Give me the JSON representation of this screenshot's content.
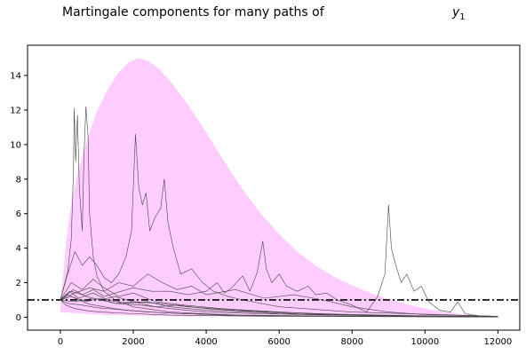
{
  "chart_data": {
    "type": "area",
    "title": "Martingale components for many paths of",
    "title_var": {
      "base": "y",
      "sub": "1"
    },
    "xlim": [
      -900,
      12600
    ],
    "ylim": [
      -0.75,
      15.75
    ],
    "x_ticks": [
      0,
      2000,
      4000,
      6000,
      8000,
      10000,
      12000
    ],
    "x_tick_labels": [
      "0",
      "2000",
      "4000",
      "6000",
      "8000",
      "10000",
      "12000"
    ],
    "y_ticks": [
      0,
      2,
      4,
      6,
      8,
      10,
      12,
      14
    ],
    "y_tick_labels": [
      "0",
      "2",
      "4",
      "6",
      "8",
      "10",
      "12",
      "14"
    ],
    "band": {
      "color": "#ffccff",
      "upper": [
        [
          0,
          0.6
        ],
        [
          150,
          4.2
        ],
        [
          300,
          6.6
        ],
        [
          500,
          8.6
        ],
        [
          750,
          10.4
        ],
        [
          1000,
          11.9
        ],
        [
          1300,
          13.2
        ],
        [
          1600,
          14.2
        ],
        [
          1900,
          14.8
        ],
        [
          2150,
          15.0
        ],
        [
          2400,
          14.85
        ],
        [
          2700,
          14.4
        ],
        [
          3000,
          13.7
        ],
        [
          3500,
          12.3
        ],
        [
          4000,
          10.7
        ],
        [
          4500,
          9.0
        ],
        [
          5000,
          7.4
        ],
        [
          5500,
          6.0
        ],
        [
          6000,
          4.8
        ],
        [
          6500,
          3.8
        ],
        [
          7000,
          3.0
        ],
        [
          7500,
          2.35
        ],
        [
          8000,
          1.85
        ],
        [
          8500,
          1.4
        ],
        [
          9000,
          1.05
        ],
        [
          9500,
          0.75
        ],
        [
          10000,
          0.5
        ],
        [
          10500,
          0.32
        ],
        [
          11000,
          0.18
        ],
        [
          11500,
          0.08
        ],
        [
          12000,
          0.03
        ]
      ],
      "lower": [
        [
          0,
          0.3
        ],
        [
          1000,
          0.15
        ],
        [
          3000,
          0.05
        ],
        [
          6000,
          0.02
        ],
        [
          12000,
          0.0
        ]
      ]
    },
    "reference_line": {
      "y": 1.0,
      "style": "dash-dot",
      "color": "#000000"
    },
    "paths_color": "#444444",
    "paths": [
      [
        [
          0,
          1.0
        ],
        [
          100,
          1.8
        ],
        [
          200,
          2.6
        ],
        [
          300,
          4.5
        ],
        [
          360,
          8.5
        ],
        [
          380,
          12.1
        ],
        [
          420,
          9.0
        ],
        [
          470,
          11.7
        ],
        [
          520,
          7.5
        ],
        [
          600,
          5.0
        ],
        [
          650,
          9.5
        ],
        [
          700,
          12.2
        ],
        [
          760,
          10.5
        ],
        [
          800,
          6.0
        ],
        [
          900,
          3.5
        ],
        [
          1000,
          2.4
        ],
        [
          1200,
          1.5
        ],
        [
          1500,
          1.0
        ],
        [
          2000,
          0.6
        ],
        [
          3000,
          0.3
        ],
        [
          5000,
          0.1
        ],
        [
          8000,
          0.05
        ],
        [
          12000,
          0.02
        ]
      ],
      [
        [
          0,
          1.0
        ],
        [
          200,
          2.5
        ],
        [
          400,
          3.8
        ],
        [
          600,
          3.0
        ],
        [
          800,
          3.5
        ],
        [
          1000,
          3.0
        ],
        [
          1200,
          2.3
        ],
        [
          1400,
          2.0
        ],
        [
          1600,
          2.5
        ],
        [
          1800,
          3.5
        ],
        [
          1950,
          5.0
        ],
        [
          2060,
          10.6
        ],
        [
          2150,
          7.5
        ],
        [
          2250,
          6.5
        ],
        [
          2350,
          7.2
        ],
        [
          2450,
          5.0
        ],
        [
          2600,
          5.8
        ],
        [
          2750,
          6.3
        ],
        [
          2850,
          8.0
        ],
        [
          2950,
          5.5
        ],
        [
          3100,
          4.0
        ],
        [
          3300,
          2.5
        ],
        [
          3600,
          2.8
        ],
        [
          3900,
          2.0
        ],
        [
          4200,
          1.5
        ],
        [
          4600,
          1.2
        ],
        [
          5000,
          1.0
        ],
        [
          6000,
          0.6
        ],
        [
          8000,
          0.3
        ],
        [
          12000,
          0.05
        ]
      ],
      [
        [
          0,
          1.0
        ],
        [
          300,
          1.5
        ],
        [
          600,
          1.3
        ],
        [
          900,
          1.6
        ],
        [
          1200,
          1.2
        ],
        [
          1500,
          1.4
        ],
        [
          2000,
          1.7
        ],
        [
          2500,
          1.5
        ],
        [
          3000,
          1.5
        ],
        [
          3500,
          1.3
        ],
        [
          4000,
          1.5
        ],
        [
          4300,
          2.0
        ],
        [
          4500,
          1.4
        ],
        [
          4700,
          1.7
        ],
        [
          5000,
          2.4
        ],
        [
          5200,
          1.5
        ],
        [
          5400,
          2.6
        ],
        [
          5550,
          4.4
        ],
        [
          5650,
          2.8
        ],
        [
          5800,
          2.0
        ],
        [
          6000,
          2.5
        ],
        [
          6200,
          1.8
        ],
        [
          6500,
          1.5
        ],
        [
          6800,
          1.8
        ],
        [
          7000,
          1.3
        ],
        [
          7300,
          1.4
        ],
        [
          7600,
          1.0
        ],
        [
          8000,
          0.7
        ],
        [
          8400,
          0.3
        ],
        [
          8700,
          1.2
        ],
        [
          8900,
          2.5
        ],
        [
          9000,
          6.5
        ],
        [
          9080,
          4.0
        ],
        [
          9200,
          3.0
        ],
        [
          9350,
          2.0
        ],
        [
          9500,
          2.5
        ],
        [
          9700,
          1.5
        ],
        [
          9900,
          1.8
        ],
        [
          10100,
          0.9
        ],
        [
          10400,
          0.4
        ],
        [
          10700,
          0.3
        ],
        [
          10900,
          0.9
        ],
        [
          11100,
          0.2
        ],
        [
          11500,
          0.08
        ],
        [
          12000,
          0.05
        ]
      ],
      [
        [
          0,
          1.0
        ],
        [
          400,
          1.4
        ],
        [
          800,
          1.7
        ],
        [
          1200,
          1.5
        ],
        [
          1600,
          2.0
        ],
        [
          2000,
          1.8
        ],
        [
          2400,
          2.5
        ],
        [
          2800,
          2.0
        ],
        [
          3200,
          1.6
        ],
        [
          3600,
          1.8
        ],
        [
          4000,
          1.3
        ],
        [
          4800,
          1.6
        ],
        [
          5600,
          1.1
        ],
        [
          6400,
          1.3
        ],
        [
          7200,
          1.0
        ],
        [
          8000,
          0.6
        ],
        [
          9000,
          0.3
        ],
        [
          10000,
          0.15
        ],
        [
          12000,
          0.05
        ]
      ],
      [
        [
          0,
          1.0
        ],
        [
          300,
          1.2
        ],
        [
          700,
          0.9
        ],
        [
          1100,
          1.1
        ],
        [
          1500,
          0.8
        ],
        [
          2000,
          0.9
        ],
        [
          2600,
          0.6
        ],
        [
          3200,
          0.7
        ],
        [
          4000,
          0.5
        ],
        [
          5000,
          0.35
        ],
        [
          6500,
          0.2
        ],
        [
          8500,
          0.1
        ],
        [
          12000,
          0.02
        ]
      ],
      [
        [
          0,
          1.0
        ],
        [
          200,
          0.8
        ],
        [
          600,
          0.7
        ],
        [
          1000,
          0.55
        ],
        [
          1600,
          0.45
        ],
        [
          2400,
          0.3
        ],
        [
          3400,
          0.2
        ],
        [
          5000,
          0.12
        ],
        [
          8000,
          0.05
        ],
        [
          12000,
          0.01
        ]
      ],
      [
        [
          0,
          1.0
        ],
        [
          250,
          1.5
        ],
        [
          500,
          1.1
        ],
        [
          900,
          1.4
        ],
        [
          1300,
          1.0
        ],
        [
          1800,
          0.8
        ],
        [
          2400,
          0.9
        ],
        [
          3000,
          0.6
        ],
        [
          4000,
          0.4
        ],
        [
          6000,
          0.2
        ],
        [
          9000,
          0.08
        ],
        [
          12000,
          0.02
        ]
      ],
      [
        [
          0,
          1.0
        ],
        [
          150,
          0.7
        ],
        [
          400,
          0.5
        ],
        [
          800,
          0.35
        ],
        [
          1500,
          0.25
        ],
        [
          3000,
          0.12
        ],
        [
          6000,
          0.05
        ],
        [
          12000,
          0.01
        ]
      ],
      [
        [
          0,
          1.0
        ],
        [
          300,
          2.0
        ],
        [
          600,
          1.6
        ],
        [
          900,
          2.2
        ],
        [
          1200,
          1.7
        ],
        [
          1600,
          1.2
        ],
        [
          2000,
          1.4
        ],
        [
          2600,
          0.9
        ],
        [
          3400,
          0.7
        ],
        [
          4400,
          0.5
        ],
        [
          5600,
          0.35
        ],
        [
          7000,
          0.2
        ],
        [
          9000,
          0.1
        ],
        [
          12000,
          0.03
        ]
      ],
      [
        [
          0,
          1.0
        ],
        [
          400,
          0.9
        ],
        [
          900,
          1.1
        ],
        [
          1500,
          0.8
        ],
        [
          2200,
          0.7
        ],
        [
          3000,
          0.5
        ],
        [
          4000,
          0.3
        ],
        [
          5500,
          0.2
        ],
        [
          7500,
          0.12
        ],
        [
          10000,
          0.06
        ],
        [
          12000,
          0.03
        ]
      ],
      [
        [
          0,
          1.0
        ],
        [
          200,
          1.3
        ],
        [
          500,
          1.0
        ],
        [
          800,
          0.75
        ],
        [
          1200,
          0.6
        ],
        [
          1800,
          0.4
        ],
        [
          2800,
          0.25
        ],
        [
          4500,
          0.12
        ],
        [
          7000,
          0.06
        ],
        [
          12000,
          0.02
        ]
      ],
      [
        [
          0,
          1.0
        ],
        [
          350,
          1.6
        ],
        [
          700,
          1.2
        ],
        [
          1100,
          1.0
        ],
        [
          1500,
          1.2
        ],
        [
          2000,
          0.9
        ],
        [
          2700,
          0.8
        ],
        [
          3500,
          0.6
        ],
        [
          4500,
          0.45
        ],
        [
          5800,
          0.3
        ],
        [
          7500,
          0.18
        ],
        [
          10000,
          0.08
        ],
        [
          12000,
          0.04
        ]
      ]
    ]
  }
}
